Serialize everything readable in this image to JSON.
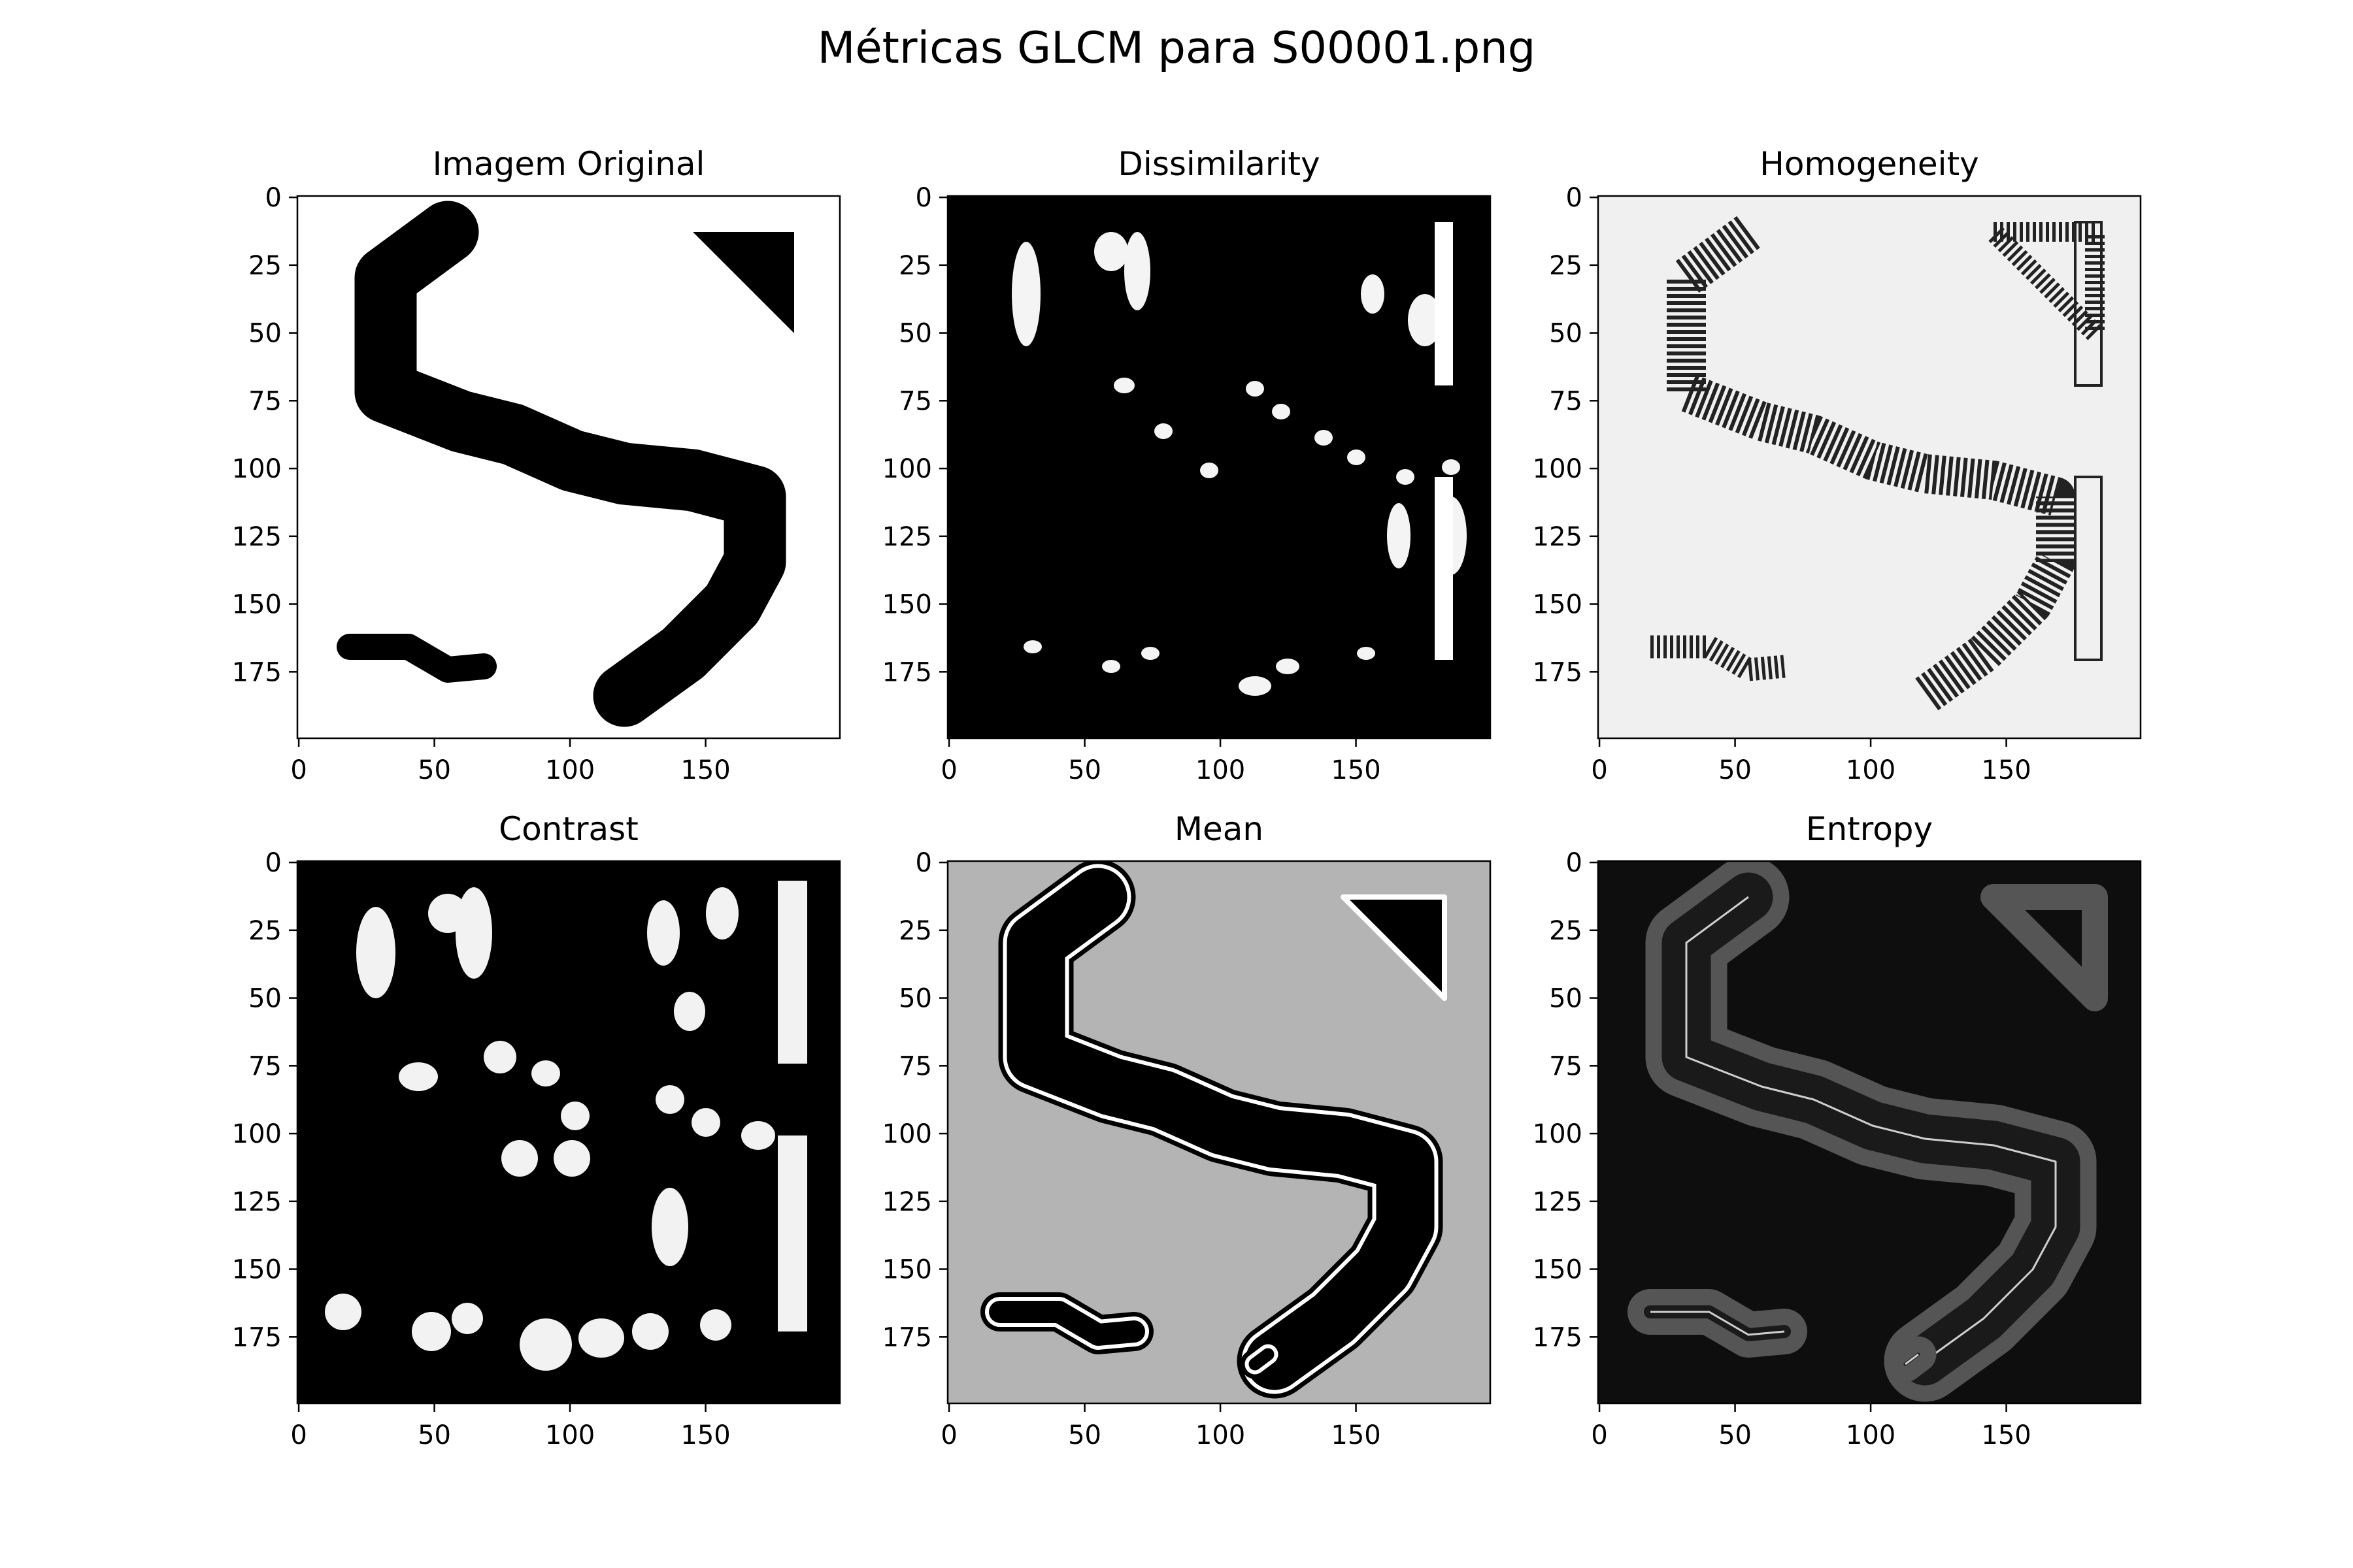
{
  "figure": {
    "title": "Métricas GLCM para S00001.png"
  },
  "colors": {
    "background": "#ffffff",
    "axis": "#000000",
    "ink": "#000000",
    "highlight": "#ffffff",
    "homogeneity_bg": "#f0f0f0",
    "mean_bg": "#b4b4b4",
    "entropy_bg": "#0e0e0e",
    "entropy_band": "#555555"
  },
  "chart_data": [
    {
      "type": "heatmap",
      "title": "Imagem Original",
      "colormap": "gray",
      "xlim": [
        0,
        199
      ],
      "ylim": [
        199,
        0
      ],
      "xticks": [
        0,
        50,
        100,
        150
      ],
      "yticks": [
        0,
        25,
        50,
        75,
        100,
        125,
        150,
        175
      ],
      "grid": false
    },
    {
      "type": "heatmap",
      "title": "Dissimilarity",
      "colormap": "gray",
      "xlim": [
        0,
        199
      ],
      "ylim": [
        199,
        0
      ],
      "xticks": [
        0,
        50,
        100,
        150
      ],
      "yticks": [
        0,
        25,
        50,
        75,
        100,
        125,
        150,
        175
      ],
      "grid": false
    },
    {
      "type": "heatmap",
      "title": "Homogeneity",
      "colormap": "gray",
      "xlim": [
        0,
        199
      ],
      "ylim": [
        199,
        0
      ],
      "xticks": [
        0,
        50,
        100,
        150
      ],
      "yticks": [
        0,
        25,
        50,
        75,
        100,
        125,
        150,
        175
      ],
      "grid": false
    },
    {
      "type": "heatmap",
      "title": "Contrast",
      "colormap": "gray",
      "xlim": [
        0,
        199
      ],
      "ylim": [
        199,
        0
      ],
      "xticks": [
        0,
        50,
        100,
        150
      ],
      "yticks": [
        0,
        25,
        50,
        75,
        100,
        125,
        150,
        175
      ],
      "grid": false
    },
    {
      "type": "heatmap",
      "title": "Mean",
      "colormap": "gray",
      "xlim": [
        0,
        199
      ],
      "ylim": [
        199,
        0
      ],
      "xticks": [
        0,
        50,
        100,
        150
      ],
      "yticks": [
        0,
        25,
        50,
        75,
        100,
        125,
        150,
        175
      ],
      "grid": false
    },
    {
      "type": "heatmap",
      "title": "Entropy",
      "colormap": "gray",
      "xlim": [
        0,
        199
      ],
      "ylim": [
        199,
        0
      ],
      "xticks": [
        0,
        50,
        100,
        150
      ],
      "yticks": [
        0,
        25,
        50,
        75,
        100,
        125,
        150,
        175
      ],
      "grid": false
    }
  ]
}
